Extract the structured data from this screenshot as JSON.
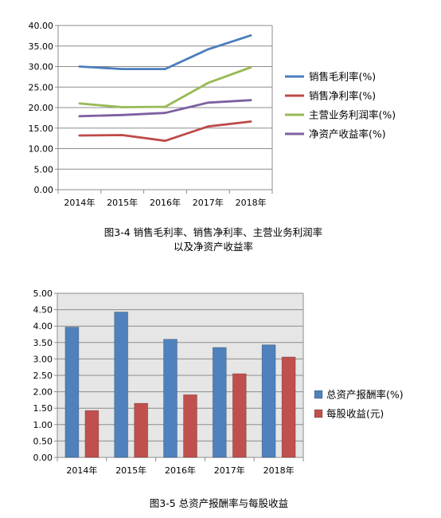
{
  "chart_data": [
    {
      "type": "line",
      "caption_line1": "图3-4 销售毛利率、销售净利率、主营业务利润率",
      "caption_line2": "以及净资产收益率",
      "categories": [
        "2014年",
        "2015年",
        "2016年",
        "2017年",
        "2018年"
      ],
      "ylim": [
        0,
        40
      ],
      "ytick_step": 5,
      "ytick_labels": [
        "0.00",
        "5.00",
        "10.00",
        "15.00",
        "20.00",
        "25.00",
        "30.00",
        "35.00",
        "40.00"
      ],
      "grid": true,
      "legend_position": "right",
      "series": [
        {
          "name": "销售毛利率(%)",
          "color": "#4a7ebb",
          "values": [
            30.0,
            29.4,
            29.4,
            34.2,
            37.6
          ]
        },
        {
          "name": "销售净利率(%)",
          "color": "#be4b48",
          "values": [
            13.2,
            13.3,
            11.9,
            15.4,
            16.6
          ]
        },
        {
          "name": "主营业务利润率(%)",
          "color": "#98b954",
          "values": [
            21.0,
            20.1,
            20.2,
            26.0,
            29.8
          ]
        },
        {
          "name": "净资产收益率(%)",
          "color": "#7d60a0",
          "values": [
            17.9,
            18.2,
            18.7,
            21.2,
            21.8
          ]
        }
      ]
    },
    {
      "type": "bar",
      "caption": "图3-5 总资产报酬率与每股收益",
      "categories": [
        "2014年",
        "2015年",
        "2016年",
        "2017年",
        "2018年"
      ],
      "ylim": [
        0,
        5
      ],
      "ytick_step": 0.5,
      "ytick_labels": [
        "0.00",
        "0.50",
        "1.00",
        "1.50",
        "2.00",
        "2.50",
        "3.00",
        "3.50",
        "4.00",
        "4.50",
        "5.00"
      ],
      "grid": true,
      "legend_position": "right",
      "plot_background": "#e6e6e6",
      "series": [
        {
          "name": "总资产报酬率(%)",
          "color": "#4f81bd",
          "values": [
            3.97,
            4.43,
            3.6,
            3.35,
            3.43
          ]
        },
        {
          "name": "每股收益(元)",
          "color": "#c0504d",
          "values": [
            1.43,
            1.65,
            1.91,
            2.55,
            3.06
          ]
        }
      ]
    }
  ]
}
